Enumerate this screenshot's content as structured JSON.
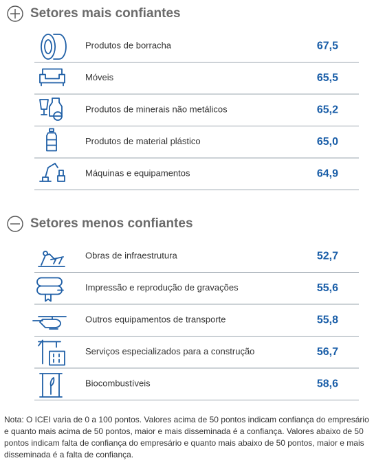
{
  "sections": [
    {
      "title": "Setores mais confiantes",
      "rows": [
        {
          "label": "Produtos de borracha",
          "value": "67,5"
        },
        {
          "label": "Móveis",
          "value": "65,5"
        },
        {
          "label": "Produtos de minerais não metálicos",
          "value": "65,2"
        },
        {
          "label": "Produtos de material plástico",
          "value": "65,0"
        },
        {
          "label": "Máquinas e equipamentos",
          "value": "64,9"
        }
      ]
    },
    {
      "title": "Setores menos confiantes",
      "rows": [
        {
          "label": "Obras de infraestrutura",
          "value": "52,7"
        },
        {
          "label": "Impressão e reprodução de gravações",
          "value": "55,6"
        },
        {
          "label": "Outros equipamentos de transporte",
          "value": "55,8"
        },
        {
          "label": "Serviços especializados para a construção",
          "value": "56,7"
        },
        {
          "label": "Biocombustíveis",
          "value": "58,6"
        }
      ]
    }
  ],
  "note": "Nota: O ICEI varia de 0 a 100 pontos. Valores acima de 50 pontos indicam confiança do empresário e quanto mais acima de 50 pontos, maior e mais disseminada é a confiança. Valores abaixo de 50 pontos indicam falta de confiança do empresário e quanto mais abaixo de 50 pontos, maior e mais disseminada é a falta de confiança."
}
